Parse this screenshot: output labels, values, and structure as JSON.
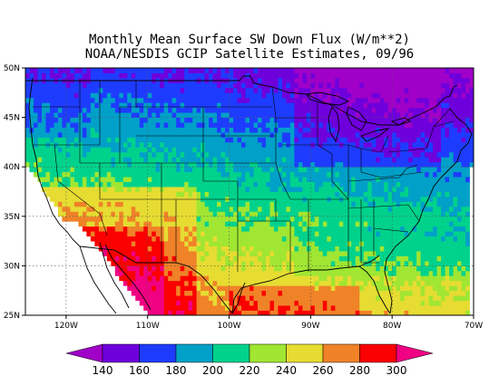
{
  "title_line1": "Monthly Mean Surface SW Down Flux (W/m**2)",
  "title_line2": "NOAA/NESDIS GCIP Satellite Estimates, 09/96",
  "map": {
    "lon_range": [
      -125,
      -70
    ],
    "lat_range": [
      25,
      50
    ],
    "lon_ticks": [
      {
        "value": -120,
        "label": "120W"
      },
      {
        "value": -110,
        "label": "110W"
      },
      {
        "value": -100,
        "label": "100W"
      },
      {
        "value": -90,
        "label": "90W"
      },
      {
        "value": -80,
        "label": "80W"
      },
      {
        "value": -70,
        "label": "70W"
      }
    ],
    "lat_ticks": [
      {
        "value": 50,
        "label": "50N"
      },
      {
        "value": 45,
        "label": "45N"
      },
      {
        "value": 40,
        "label": "40N"
      },
      {
        "value": 35,
        "label": "35N"
      },
      {
        "value": 30,
        "label": "30N"
      },
      {
        "value": 25,
        "label": "25N"
      }
    ],
    "grid": true
  },
  "colorbar": {
    "levels": [
      140,
      160,
      180,
      200,
      220,
      240,
      260,
      280,
      300
    ],
    "labels": [
      "140",
      "160",
      "180",
      "200",
      "220",
      "240",
      "260",
      "280",
      "300"
    ],
    "colors": [
      "#a000c8",
      "#6e00dc",
      "#1e3cff",
      "#00a0c8",
      "#00d28c",
      "#a0e632",
      "#e6dc32",
      "#f08228",
      "#fa0000",
      "#f00082"
    ]
  }
}
